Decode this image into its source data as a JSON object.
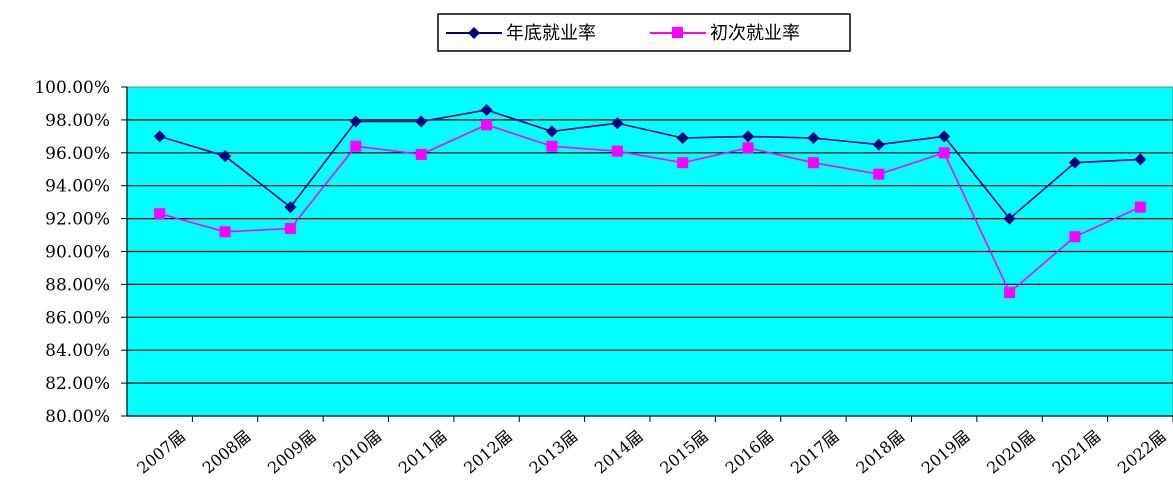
{
  "chart_data": {
    "type": "line",
    "title": "",
    "xlabel": "",
    "ylabel": "",
    "categories": [
      "2007届",
      "2008届",
      "2009届",
      "2010届",
      "2011届",
      "2012届",
      "2013届",
      "2014届",
      "2015届",
      "2016届",
      "2017届",
      "2018届",
      "2019届",
      "2020届",
      "2021届",
      "2022届"
    ],
    "y_ticks": [
      "80.00%",
      "82.00%",
      "84.00%",
      "86.00%",
      "88.00%",
      "90.00%",
      "92.00%",
      "94.00%",
      "96.00%",
      "98.00%",
      "100.00%"
    ],
    "ylim": [
      80,
      100
    ],
    "grid": true,
    "legend_position": "top-center",
    "plot_background": "#00FFFF",
    "series": [
      {
        "name": "年底就业率",
        "color": "#000080",
        "marker": "diamond",
        "values": [
          97.0,
          95.8,
          92.7,
          97.9,
          97.9,
          98.6,
          97.3,
          97.8,
          96.9,
          97.0,
          96.9,
          96.5,
          97.0,
          92.0,
          95.4,
          95.6
        ]
      },
      {
        "name": "初次就业率",
        "color": "#FF00FF",
        "marker": "square",
        "values": [
          92.3,
          91.2,
          91.4,
          96.4,
          95.9,
          97.7,
          96.4,
          96.1,
          95.4,
          96.3,
          95.4,
          94.7,
          96.0,
          87.5,
          90.9,
          92.7
        ]
      }
    ]
  }
}
